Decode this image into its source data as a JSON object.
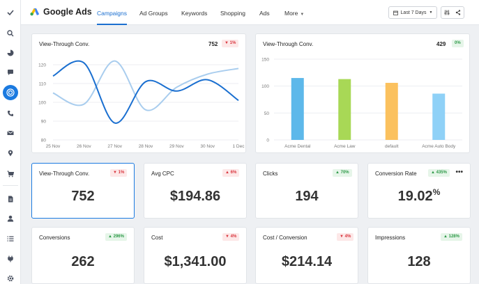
{
  "app": {
    "title": "Google Ads"
  },
  "nav": {
    "tabs": [
      {
        "label": "Campaigns",
        "active": true
      },
      {
        "label": "Ad Groups"
      },
      {
        "label": "Keywords"
      },
      {
        "label": "Shopping"
      },
      {
        "label": "Ads"
      },
      {
        "label": "More"
      }
    ],
    "date_range": "Last 7 Days"
  },
  "colors": {
    "accent": "#1b7ae0",
    "line_primary": "#1a6fd0",
    "line_secondary": "#a9cdee"
  },
  "sidebar": {
    "icons": [
      "check-icon",
      "search-icon",
      "pie-chart-icon",
      "chat-icon",
      "target-icon",
      "phone-icon",
      "mail-icon",
      "location-icon",
      "cart-icon",
      "document-icon",
      "user-icon",
      "list-icon",
      "plug-icon",
      "settings-icon"
    ],
    "active": "target-icon"
  },
  "line_card": {
    "title": "View-Through Conv.",
    "value": "752",
    "change": "1%",
    "direction": "down"
  },
  "bar_card": {
    "title": "View-Through Conv.",
    "value": "429",
    "change": "0%",
    "direction": "up"
  },
  "metrics": [
    {
      "title": "View-Through Conv.",
      "value": "752",
      "change": "1%",
      "direction": "down",
      "selected": true
    },
    {
      "title": "Avg CPC",
      "value": "$194.86",
      "change": "6%",
      "direction": "down"
    },
    {
      "title": "Clicks",
      "value": "194",
      "change": "70%",
      "direction": "up"
    },
    {
      "title": "Conversion Rate",
      "value": "19.02",
      "suffix": "%",
      "change": "435%",
      "direction": "up",
      "menu": "•••"
    },
    {
      "title": "Conversions",
      "value": "262",
      "change": "296%",
      "direction": "up"
    },
    {
      "title": "Cost",
      "value": "$1,341.00",
      "change": "4%",
      "direction": "down"
    },
    {
      "title": "Cost / Conversion",
      "value": "$214.14",
      "change": "4%",
      "direction": "down"
    },
    {
      "title": "Impressions",
      "value": "128",
      "change": "128%",
      "direction": "up"
    }
  ],
  "chart_data": [
    {
      "type": "line",
      "x": [
        "25 Nov",
        "26 Nov",
        "27 Nov",
        "28 Nov",
        "29 Nov",
        "30 Nov",
        "1 Dec"
      ],
      "ylim": [
        80,
        120
      ],
      "yticks": [
        80,
        90,
        100,
        110,
        120
      ],
      "series": [
        {
          "values": [
            114,
            121,
            89,
            111,
            106,
            112,
            101
          ]
        },
        {
          "values": [
            105,
            99,
            122,
            96,
            108,
            115,
            118
          ]
        }
      ],
      "grid": true
    },
    {
      "type": "bar",
      "categories": [
        "Acme Dental",
        "Acme Law",
        "default",
        "Acme Auto Body"
      ],
      "values": [
        115,
        113,
        106,
        86
      ],
      "colors": [
        "#5db8ea",
        "#a8d856",
        "#fbc15e",
        "#8fd1f7"
      ],
      "ylim": [
        0,
        150
      ],
      "yticks": [
        0,
        50,
        100,
        150
      ],
      "grid": true
    }
  ]
}
